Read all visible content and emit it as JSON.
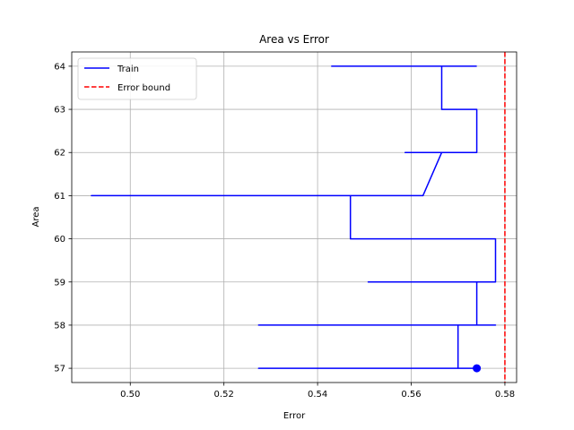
{
  "chart_data": {
    "type": "line",
    "title": "Area vs Error",
    "xlabel": "Error",
    "ylabel": "Area",
    "xlim": [
      0.4875,
      0.5825
    ],
    "ylim": [
      56.67,
      64.33
    ],
    "x_ticks": [
      0.5,
      0.52,
      0.54,
      0.56,
      0.58
    ],
    "x_tick_labels": [
      "0.50",
      "0.52",
      "0.54",
      "0.56",
      "0.58"
    ],
    "y_ticks": [
      57,
      58,
      59,
      60,
      61,
      62,
      63,
      64
    ],
    "y_tick_labels": [
      "57",
      "58",
      "59",
      "60",
      "61",
      "62",
      "63",
      "64"
    ],
    "grid": true,
    "legend_position": "upper-left",
    "series": [
      {
        "name": "Train",
        "color": "#0000ff",
        "style": "solid",
        "points": [
          [
            0.574,
            57
          ],
          [
            0.5274,
            57
          ],
          [
            0.57,
            57
          ],
          [
            0.57,
            58
          ],
          [
            0.5274,
            58
          ],
          [
            0.578,
            58
          ],
          [
            0.574,
            58
          ],
          [
            0.574,
            59
          ],
          [
            0.5508,
            59
          ],
          [
            0.578,
            59
          ],
          [
            0.578,
            60
          ],
          [
            0.547,
            60
          ],
          [
            0.547,
            61
          ],
          [
            0.4917,
            61
          ],
          [
            0.5625,
            61
          ],
          [
            0.5665,
            62
          ],
          [
            0.5587,
            62
          ],
          [
            0.574,
            62
          ],
          [
            0.574,
            63
          ],
          [
            0.5665,
            63
          ],
          [
            0.5665,
            64
          ],
          [
            0.543,
            64
          ],
          [
            0.574,
            64
          ]
        ],
        "marker": [
          0.574,
          57
        ]
      },
      {
        "name": "Error bound",
        "color": "#ff0000",
        "style": "dashed",
        "x": 0.58
      }
    ]
  }
}
